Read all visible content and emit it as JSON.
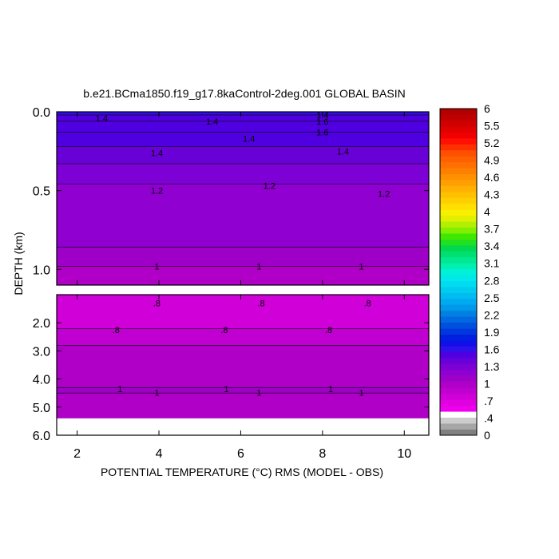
{
  "chart_data": {
    "type": "contour",
    "title": "b.e21.BCma1850.f19_g17.8kaControl-2deg.001 GLOBAL BASIN",
    "xlabel": "POTENTIAL TEMPERATURE (°C) RMS (MODEL - OBS)",
    "ylabel": "DEPTH (km)",
    "x_ticks": [
      "2",
      "4",
      "6",
      "8",
      "10"
    ],
    "xlim": [
      1.5,
      10.6
    ],
    "upper_panel": {
      "ylim": [
        0.0,
        1.1
      ],
      "y_ticks": [
        "0.0",
        "0.5",
        "1.0"
      ],
      "bands": [
        {
          "depth_top": 0.0,
          "depth_bottom": 0.02,
          "value": 1.55
        },
        {
          "depth_top": 0.02,
          "depth_bottom": 0.06,
          "value": 1.45
        },
        {
          "depth_top": 0.06,
          "depth_bottom": 0.13,
          "value": 1.5
        },
        {
          "depth_top": 0.13,
          "depth_bottom": 0.22,
          "value": 1.45
        },
        {
          "depth_top": 0.22,
          "depth_bottom": 0.33,
          "value": 1.35
        },
        {
          "depth_top": 0.33,
          "depth_bottom": 0.46,
          "value": 1.25
        },
        {
          "depth_top": 0.46,
          "depth_bottom": 0.86,
          "value": 1.15
        },
        {
          "depth_top": 0.86,
          "depth_bottom": 0.98,
          "value": 1.05
        },
        {
          "depth_top": 0.98,
          "depth_bottom": 1.1,
          "value": 0.95
        }
      ],
      "contour_labels": [
        {
          "text": "1.4",
          "x": 2.6,
          "depth": 0.04
        },
        {
          "text": "1.4",
          "x": 5.3,
          "depth": 0.06
        },
        {
          "text": "1.4",
          "x": 8.0,
          "depth": 0.02
        },
        {
          "text": "1.6",
          "x": 8.0,
          "depth": 0.06
        },
        {
          "text": "1.6",
          "x": 8.0,
          "depth": 0.13
        },
        {
          "text": "1.4",
          "x": 6.2,
          "depth": 0.17
        },
        {
          "text": "1.4",
          "x": 3.95,
          "depth": 0.26
        },
        {
          "text": "1.4",
          "x": 8.5,
          "depth": 0.25
        },
        {
          "text": "1.2",
          "x": 3.95,
          "depth": 0.5
        },
        {
          "text": "1.2",
          "x": 6.7,
          "depth": 0.47
        },
        {
          "text": "1.2",
          "x": 9.5,
          "depth": 0.52
        },
        {
          "text": "1",
          "x": 3.95,
          "depth": 0.98
        },
        {
          "text": "1",
          "x": 6.45,
          "depth": 0.98
        },
        {
          "text": "1",
          "x": 8.95,
          "depth": 0.98
        }
      ]
    },
    "lower_panel": {
      "ylim": [
        1.0,
        6.0
      ],
      "y_ticks": [
        "2.0",
        "3.0",
        "4.0",
        "5.0",
        "6.0"
      ],
      "bands": [
        {
          "depth_top": 1.0,
          "depth_bottom": 2.2,
          "value": 0.75
        },
        {
          "depth_top": 2.2,
          "depth_bottom": 2.8,
          "value": 0.85
        },
        {
          "depth_top": 2.8,
          "depth_bottom": 4.3,
          "value": 0.95
        },
        {
          "depth_top": 4.3,
          "depth_bottom": 4.5,
          "value": 1.0
        },
        {
          "depth_top": 4.5,
          "depth_bottom": 5.4,
          "value": 0.95
        }
      ],
      "contour_labels": [
        {
          "text": ".8",
          "x": 3.95,
          "depth": 1.3
        },
        {
          "text": ".8",
          "x": 6.5,
          "depth": 1.3
        },
        {
          "text": ".8",
          "x": 9.1,
          "depth": 1.3
        },
        {
          "text": ".8",
          "x": 2.95,
          "depth": 2.25
        },
        {
          "text": ".8",
          "x": 5.6,
          "depth": 2.25
        },
        {
          "text": ".8",
          "x": 8.15,
          "depth": 2.25
        },
        {
          "text": "1",
          "x": 3.05,
          "depth": 4.35
        },
        {
          "text": "1",
          "x": 5.65,
          "depth": 4.35
        },
        {
          "text": "1",
          "x": 8.2,
          "depth": 4.35
        },
        {
          "text": "1",
          "x": 3.95,
          "depth": 4.48
        },
        {
          "text": "1",
          "x": 6.45,
          "depth": 4.48
        },
        {
          "text": "1",
          "x": 8.95,
          "depth": 4.48
        }
      ]
    },
    "colorbar": {
      "labels": [
        "6",
        "5.5",
        "5.2",
        "4.9",
        "4.6",
        "4.3",
        "4",
        "3.7",
        "3.4",
        "3.1",
        "2.8",
        "2.5",
        "2.2",
        "1.9",
        "1.6",
        "1.3",
        "1",
        ".7",
        ".4",
        "0"
      ],
      "colors": [
        "#808080",
        "#a6a6a6",
        "#cccccc",
        "#ffffff",
        "#ee00ee",
        "#e000e0",
        "#d000d8",
        "#c000d0",
        "#b000c8",
        "#9e00c8",
        "#9000d0",
        "#7d00d5",
        "#6a00d8",
        "#5000e0",
        "#3010e8",
        "#1010e8",
        "#0020e0",
        "#0038e0",
        "#0050e0",
        "#0068e0",
        "#0080e0",
        "#0098e8",
        "#00aaf0",
        "#00bcf0",
        "#00ccf0",
        "#00dcf0",
        "#00e8e8",
        "#00f0d8",
        "#00f0b0",
        "#00e890",
        "#00e070",
        "#00d850",
        "#20e020",
        "#40e800",
        "#80f000",
        "#b0f000",
        "#e0f000",
        "#f8f000",
        "#ffe000",
        "#ffd000",
        "#ffc000",
        "#ffb000",
        "#ffa000",
        "#ff9000",
        "#ff8000",
        "#ff7000",
        "#ff6000",
        "#ff5000",
        "#ff3000",
        "#ff1000",
        "#f00000",
        "#e00000",
        "#d00000",
        "#c00000",
        "#b00000"
      ]
    }
  }
}
